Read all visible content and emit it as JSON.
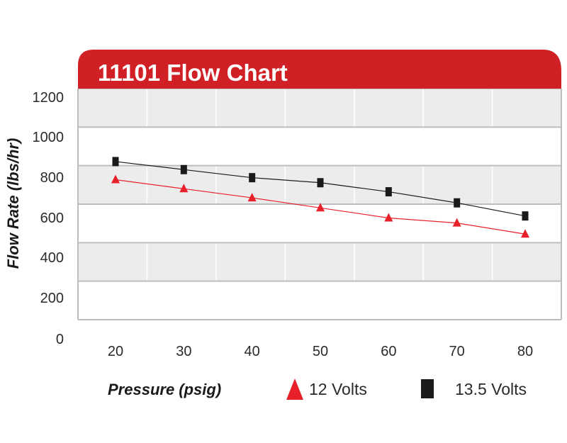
{
  "chart_data": {
    "type": "line",
    "title": "11101 Flow Chart",
    "xlabel": "Pressure (psig)",
    "ylabel": "Flow Rate (lbs/hr)",
    "x": [
      20,
      30,
      40,
      50,
      60,
      70,
      80
    ],
    "x_ticks": [
      "20",
      "30",
      "40",
      "50",
      "60",
      "70",
      "80"
    ],
    "y_ticks": [
      "0",
      "200",
      "400",
      "600",
      "800",
      "1000",
      "1200"
    ],
    "ylim": [
      0,
      1200
    ],
    "grid": "horizontal bands",
    "legend_position": "bottom",
    "series": [
      {
        "name": "12 Volts",
        "marker": "triangle",
        "marker_color": "#e8202a",
        "line_color": "#e8202a",
        "values": [
          790,
          745,
          700,
          650,
          600,
          575,
          520
        ]
      },
      {
        "name": "13.5 Volts",
        "marker": "square",
        "marker_color": "#1a1a1a",
        "line_color": "#1a1a1a",
        "values": [
          880,
          840,
          800,
          775,
          730,
          675,
          610
        ]
      }
    ],
    "colors": {
      "title_bar": "#d11f26",
      "band": "#ececec",
      "grid": "#bdbdbd"
    }
  }
}
